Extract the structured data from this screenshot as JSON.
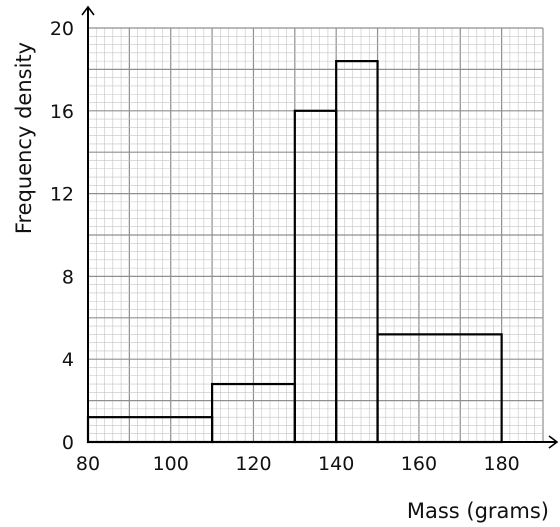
{
  "chart_data": {
    "type": "histogram",
    "title": "",
    "xlabel": "Mass (grams)",
    "ylabel": "Frequency density",
    "xlim": [
      80,
      190
    ],
    "ylim": [
      0,
      20
    ],
    "x_ticks": [
      80,
      100,
      120,
      140,
      160,
      180
    ],
    "y_ticks": [
      0,
      4,
      8,
      12,
      16,
      20
    ],
    "grid": true,
    "bins": [
      {
        "from": 80,
        "to": 110,
        "density": 1.2
      },
      {
        "from": 110,
        "to": 130,
        "density": 2.8
      },
      {
        "from": 130,
        "to": 140,
        "density": 16
      },
      {
        "from": 140,
        "to": 150,
        "density": 18.4
      },
      {
        "from": 150,
        "to": 180,
        "density": 5.2
      }
    ],
    "colors": {
      "bar_edge": "#000000",
      "bar_fill": "none",
      "grid_minor": "#c4c4c4",
      "grid_major": "#8f8f8f",
      "axis": "#000000"
    }
  }
}
